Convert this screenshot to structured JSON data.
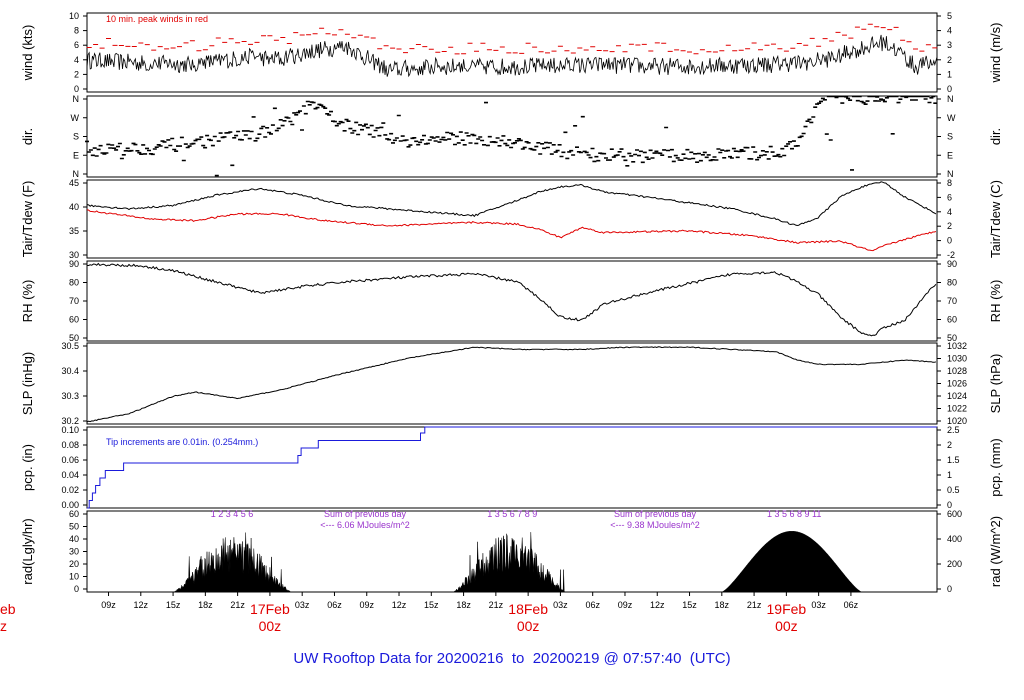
{
  "footer": {
    "prefix": "UW Rooftop Data for",
    "start": "20200216",
    "to": "to",
    "end": "20200219",
    "at": "@",
    "time": "07:57:40",
    "tz": "(UTC)"
  },
  "colors": {
    "black": "#000000",
    "red": "#e00000",
    "blue": "#1a1adb",
    "purple": "#9933cc"
  },
  "chart_data": {
    "type": "line",
    "time_axis": {
      "start": "2020-02-16 07:00 UTC",
      "end": "2020-02-19 07:57 UTC",
      "tick_labels": [
        "09z",
        "12z",
        "15z",
        "18z",
        "21z",
        "03z",
        "06z",
        "09z",
        "12z",
        "15z",
        "18z",
        "21z",
        "03z",
        "06z",
        "09z",
        "12z",
        "15z",
        "18z",
        "21z",
        "03z",
        "06z"
      ],
      "day_labels": [
        {
          "day": "eb",
          "hour": "z",
          "partial": true
        },
        {
          "day": "17Feb",
          "hour": "00z"
        },
        {
          "day": "18Feb",
          "hour": "00z"
        },
        {
          "day": "19Feb",
          "hour": "00z"
        }
      ]
    },
    "panels": [
      {
        "id": "wind",
        "ylabel": "wind (kts)",
        "ylabel_right": "wind (m/s)",
        "yticks": [
          "0",
          "2",
          "4",
          "6",
          "8",
          "10"
        ],
        "yticks_right": [
          "0",
          "1",
          "2",
          "3",
          "4",
          "5"
        ],
        "ylim": [
          0,
          10
        ],
        "annotation": "10 min. peak winds in red",
        "series": [
          {
            "name": "wind",
            "color": "#000000",
            "style": "line"
          },
          {
            "name": "10 min. peak winds",
            "color": "#e00000",
            "style": "dash"
          }
        ],
        "anchors": [
          [
            0,
            4
          ],
          [
            6,
            3.6
          ],
          [
            10,
            3.5
          ],
          [
            12,
            3.9
          ],
          [
            15,
            4.4
          ],
          [
            18,
            4.2
          ],
          [
            21,
            5.2
          ],
          [
            24,
            5.8
          ],
          [
            28,
            2.8
          ],
          [
            32,
            3.2
          ],
          [
            40,
            3.2
          ],
          [
            48,
            3.4
          ],
          [
            56,
            3.2
          ],
          [
            66,
            3.6
          ],
          [
            69,
            4.2
          ],
          [
            72,
            5.6
          ],
          [
            74,
            6.3
          ],
          [
            75,
            5.6
          ],
          [
            77,
            3.2
          ],
          [
            79,
            3.8
          ]
        ]
      },
      {
        "id": "dir",
        "ylabel": "dir.",
        "ylabel_right": "dir.",
        "yticks": [
          "N",
          "E",
          "S",
          "W",
          "N"
        ],
        "yticks_right": [
          "N",
          "E",
          "S",
          "W",
          "N"
        ],
        "ylim": [
          0,
          360
        ],
        "series": [
          {
            "name": "wind direction",
            "color": "#000000",
            "style": "dash"
          }
        ],
        "anchors": [
          [
            0,
            120
          ],
          [
            6,
            130
          ],
          [
            12,
            165
          ],
          [
            17,
            200
          ],
          [
            19,
            260
          ],
          [
            21,
            320
          ],
          [
            24,
            230
          ],
          [
            30,
            160
          ],
          [
            36,
            175
          ],
          [
            40,
            150
          ],
          [
            44,
            115
          ],
          [
            48,
            95
          ],
          [
            54,
            92
          ],
          [
            60,
            100
          ],
          [
            64,
            110
          ],
          [
            66,
            140
          ],
          [
            68,
            340
          ],
          [
            74,
            355
          ],
          [
            79,
            355
          ]
        ]
      },
      {
        "id": "temp",
        "ylabel": "Tair/Tdew (F)",
        "ylabel_right": "Tair/Tdew (C)",
        "yticks": [
          "30",
          "35",
          "40",
          "45"
        ],
        "yticks_right": [
          "-2",
          "0",
          "2",
          "4",
          "6",
          "8"
        ],
        "ylim": [
          26,
          49
        ],
        "series": [
          {
            "name": "Tair",
            "color": "#000000",
            "anchors": [
              [
                0,
                41.5
              ],
              [
                4,
                40.5
              ],
              [
                8,
                41.5
              ],
              [
                12,
                44.5
              ],
              [
                16,
                46.5
              ],
              [
                20,
                44.5
              ],
              [
                24,
                41.5
              ],
              [
                30,
                40.0
              ],
              [
                36,
                38.5
              ],
              [
                40,
                43.0
              ],
              [
                42,
                45.5
              ],
              [
                44,
                47.0
              ],
              [
                46,
                47.5
              ],
              [
                48,
                45.5
              ],
              [
                52,
                44.0
              ],
              [
                60,
                40.5
              ],
              [
                64,
                37.5
              ],
              [
                66,
                35.5
              ],
              [
                68,
                38.0
              ],
              [
                70,
                44.0
              ],
              [
                72,
                47.0
              ],
              [
                74,
                48.5
              ],
              [
                76,
                44.0
              ],
              [
                79,
                39.0
              ]
            ]
          },
          {
            "name": "Tdew",
            "color": "#e00000",
            "anchors": [
              [
                0,
                40.0
              ],
              [
                6,
                37.5
              ],
              [
                10,
                37.0
              ],
              [
                14,
                39.0
              ],
              [
                18,
                39.0
              ],
              [
                22,
                37.0
              ],
              [
                28,
                35.5
              ],
              [
                36,
                36.5
              ],
              [
                40,
                36.0
              ],
              [
                42,
                34.5
              ],
              [
                44,
                32.0
              ],
              [
                46,
                35.0
              ],
              [
                48,
                33.5
              ],
              [
                56,
                34.0
              ],
              [
                62,
                32.5
              ],
              [
                66,
                30.5
              ],
              [
                70,
                31.0
              ],
              [
                72,
                29.0
              ],
              [
                73,
                28.0
              ],
              [
                74,
                29.5
              ],
              [
                76,
                31.5
              ],
              [
                79,
                34.0
              ]
            ]
          }
        ]
      },
      {
        "id": "rh",
        "ylabel": "RH (%)",
        "ylabel_right": "RH (%)",
        "yticks": [
          "50",
          "60",
          "70",
          "80",
          "90"
        ],
        "yticks_right": [
          "50",
          "60",
          "70",
          "80",
          "90"
        ],
        "ylim": [
          43,
          93
        ],
        "series": [
          {
            "name": "RH",
            "color": "#000000"
          }
        ],
        "anchors": [
          [
            0,
            91
          ],
          [
            5,
            90
          ],
          [
            8,
            87
          ],
          [
            12,
            80
          ],
          [
            16,
            73
          ],
          [
            20,
            77
          ],
          [
            24,
            80
          ],
          [
            30,
            83
          ],
          [
            36,
            85
          ],
          [
            40,
            80
          ],
          [
            42,
            70
          ],
          [
            44,
            58
          ],
          [
            46,
            56
          ],
          [
            48,
            66
          ],
          [
            52,
            73
          ],
          [
            56,
            79
          ],
          [
            60,
            85
          ],
          [
            64,
            86
          ],
          [
            66,
            80
          ],
          [
            68,
            72
          ],
          [
            70,
            58
          ],
          [
            72,
            48
          ],
          [
            73,
            46
          ],
          [
            74,
            51
          ],
          [
            76,
            56
          ],
          [
            79,
            80
          ]
        ]
      },
      {
        "id": "slp",
        "ylabel": "SLP (inHg)",
        "ylabel_right": "SLP (hPa)",
        "yticks": [
          "30.2",
          "30.3",
          "30.4",
          "30.5"
        ],
        "yticks_right": [
          "1020",
          "1022",
          "1024",
          "1026",
          "1028",
          "1030",
          "1032"
        ],
        "ylim": [
          30.13,
          30.51
        ],
        "series": [
          {
            "name": "SLP",
            "color": "#000000"
          }
        ],
        "anchors": [
          [
            0,
            30.14
          ],
          [
            4,
            30.18
          ],
          [
            8,
            30.26
          ],
          [
            10,
            30.28
          ],
          [
            14,
            30.25
          ],
          [
            18,
            30.29
          ],
          [
            24,
            30.37
          ],
          [
            30,
            30.44
          ],
          [
            36,
            30.49
          ],
          [
            40,
            30.48
          ],
          [
            46,
            30.48
          ],
          [
            50,
            30.49
          ],
          [
            56,
            30.49
          ],
          [
            60,
            30.48
          ],
          [
            64,
            30.47
          ],
          [
            66,
            30.43
          ],
          [
            68,
            30.41
          ],
          [
            72,
            30.41
          ],
          [
            76,
            30.43
          ],
          [
            79,
            30.42
          ]
        ]
      },
      {
        "id": "pcp",
        "ylabel": "pcp. (in)",
        "ylabel_right": "pcp. (mm)",
        "yticks": [
          "0.00",
          "0.02",
          "0.04",
          "0.06",
          "0.08",
          "0.10"
        ],
        "yticks_right": [
          "0",
          "0.5",
          "1",
          "1.5",
          "2",
          "2.5"
        ],
        "ylim": [
          0,
          0.108
        ],
        "annotation": "Tip increments are 0.01in. (0.254mm.)",
        "series": [
          {
            "name": "pcp",
            "color": "#1a1adb",
            "style": "step"
          }
        ],
        "steps": [
          [
            0,
            0
          ],
          [
            0.2,
            0.01
          ],
          [
            0.5,
            0.02
          ],
          [
            0.8,
            0.03
          ],
          [
            1.2,
            0.04
          ],
          [
            1.7,
            0.05
          ],
          [
            3.4,
            0.06
          ],
          [
            19.6,
            0.07
          ],
          [
            19.9,
            0.08
          ],
          [
            21.5,
            0.09
          ],
          [
            31.0,
            0.1
          ],
          [
            31.4,
            0.11
          ]
        ]
      },
      {
        "id": "rad",
        "ylabel": "rad(Lgly/hr)",
        "ylabel_right": "rad (W/m^2)",
        "yticks": [
          "0",
          "10",
          "20",
          "30",
          "40",
          "50",
          "60"
        ],
        "yticks_right": [
          "0",
          "200",
          "400",
          "600"
        ],
        "ylim": [
          0,
          60
        ],
        "series": [
          {
            "name": "radiation",
            "color": "#000000",
            "style": "area"
          }
        ],
        "days": [
          {
            "start": 8,
            "end": 19,
            "peak": 38,
            "noisy": true
          },
          {
            "start": 34,
            "end": 44.5,
            "peak": 40,
            "noisy": true
          },
          {
            "start": 59,
            "end": 72,
            "peak": 45,
            "noisy": false
          }
        ],
        "sunshine_labels": [
          {
            "hour": 11.5,
            "text": "1   2  3      4    5       6"
          },
          {
            "hour": 37.2,
            "text": "1   3      5   6   7   8   9"
          },
          {
            "hour": 63.2,
            "text": "1    3      5  6   8   9  11"
          }
        ],
        "annotations": [
          {
            "line1": "Sum of previous day",
            "line2": "<--- 6.06 MJoules/m^2"
          },
          {
            "line1": "Sum of previous day",
            "line2": "<--- 9.38 MJoules/m^2"
          }
        ]
      }
    ]
  }
}
